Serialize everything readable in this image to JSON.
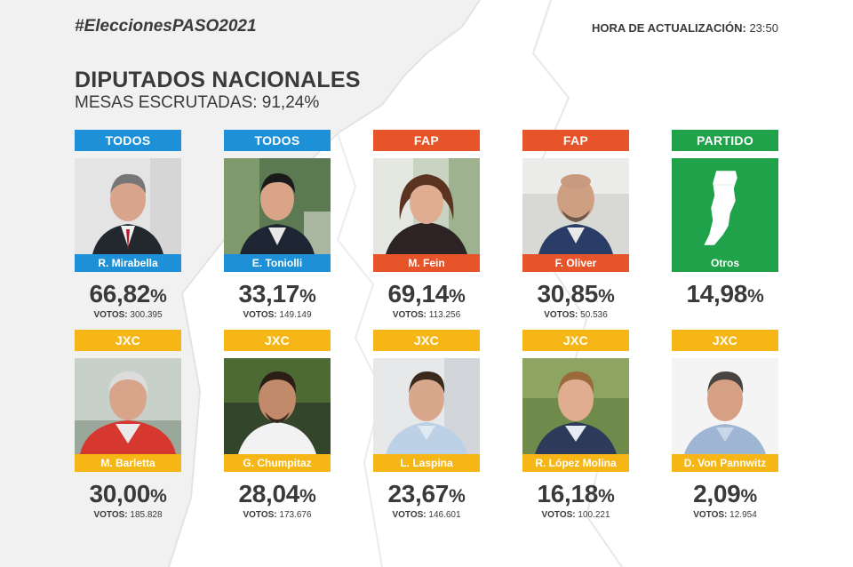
{
  "header": {
    "hashtag": "#EleccionesPASO2021",
    "update_label": "HORA DE ACTUALIZACIÓN:",
    "update_time": "23:50"
  },
  "section": {
    "title": "DIPUTADOS NACIONALES",
    "subtitle": "MESAS ESCRUTADAS: 91,24%"
  },
  "votes_label": "VOTOS:",
  "percent_sign": "%",
  "colors": {
    "todos": "#1e90d8",
    "fap": "#e8542a",
    "partido": "#1fa24a",
    "jxc": "#f5b616"
  },
  "row1": [
    {
      "party": "TODOS",
      "name": "R. Mirabella",
      "percent": "66,82",
      "votes": "300.395",
      "share": 0.6682
    },
    {
      "party": "TODOS",
      "name": "E. Toniolli",
      "percent": "33,17",
      "votes": "149.149",
      "share": 0.3317
    },
    {
      "party": "FAP",
      "name": "M. Fein",
      "percent": "69,14",
      "votes": "113.256",
      "share": 0.6914
    },
    {
      "party": "FAP",
      "name": "F. Oliver",
      "percent": "30,85",
      "votes": "50.536",
      "share": 0.3085
    },
    {
      "party": "PARTIDO",
      "name": "Otros",
      "percent": "14,98",
      "votes": "",
      "icon": "santa-fe-map-icon"
    }
  ],
  "row2": [
    {
      "party": "JXC",
      "name": "M. Barletta",
      "percent": "30,00",
      "votes": "185.828"
    },
    {
      "party": "JXC",
      "name": "G. Chumpitaz",
      "percent": "28,04",
      "votes": "173.676"
    },
    {
      "party": "JXC",
      "name": "L. Laspina",
      "percent": "23,67",
      "votes": "146.601"
    },
    {
      "party": "JXC",
      "name": "R. López Molina",
      "percent": "16,18",
      "votes": "100.221"
    },
    {
      "party": "JXC",
      "name": "D. Von Pannwitz",
      "percent": "2,09",
      "votes": "12.954"
    }
  ]
}
